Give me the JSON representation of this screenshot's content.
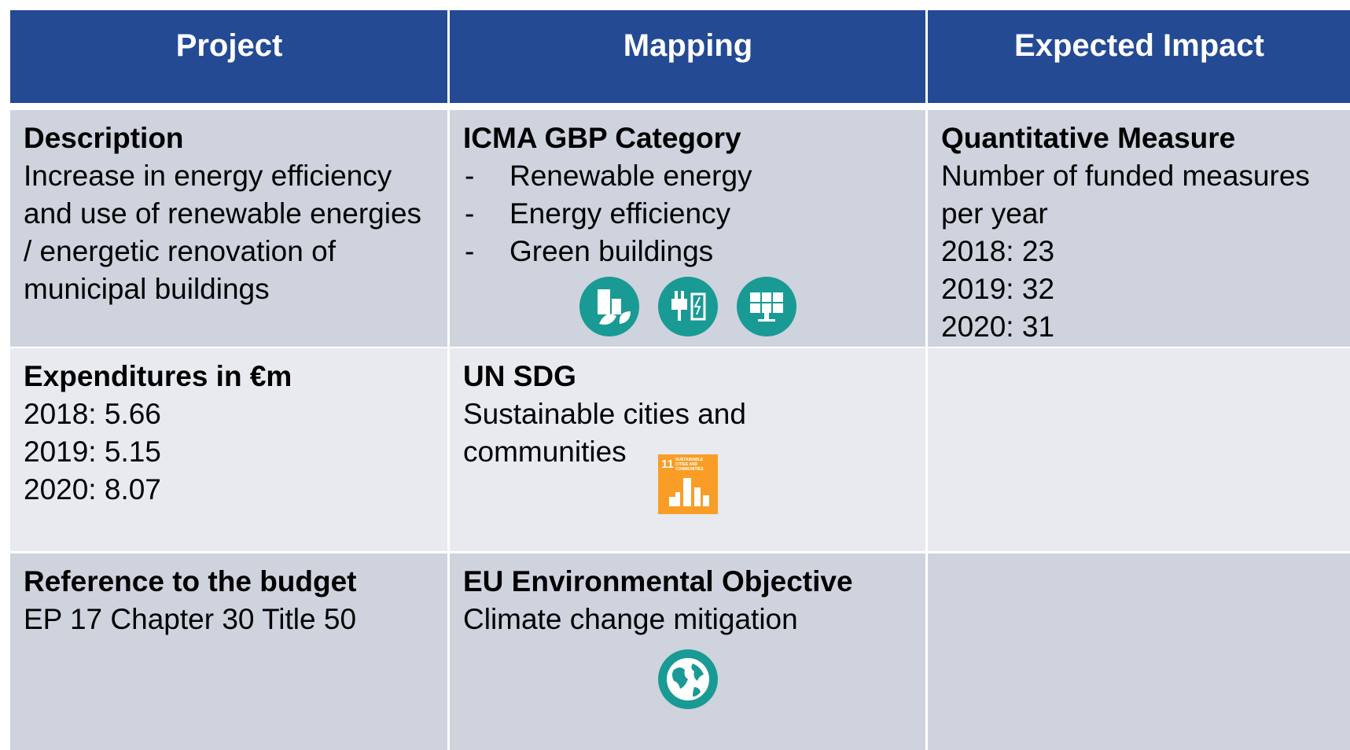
{
  "table": {
    "headers": [
      "Project",
      "Mapping",
      "Expected Impact"
    ],
    "rows": [
      [
        {
          "title": "Description",
          "text": "Increase in energy efficiency and use of renewable energies / energetic renovation of municipal buildings"
        },
        {
          "title": "ICMA GBP Category",
          "bullets": [
            "Renewable energy",
            "Energy efficiency",
            "Green buildings"
          ]
        },
        {
          "title": "Quantitative Measure",
          "lines": [
            "Number of funded measures per year",
            "2018: 23",
            "2019: 32",
            "2020: 31"
          ]
        }
      ],
      [
        {
          "title": "Expenditures in €m",
          "lines": [
            "2018: 5.66",
            "2019: 5.15",
            "2020: 8.07"
          ]
        },
        {
          "title": "UN SDG",
          "text": "Sustainable cities and communities",
          "icon_number": "11",
          "icon_text": "SUSTAINABLE CITIES AND COMMUNITIES"
        }
      ],
      [
        {
          "title": "Reference to the budget",
          "lines": [
            "EP 17 Chapter 30 Title 50"
          ]
        },
        {
          "title": "EU Environmental Objective",
          "lines": [
            "Climate change mitigation"
          ]
        }
      ]
    ]
  }
}
